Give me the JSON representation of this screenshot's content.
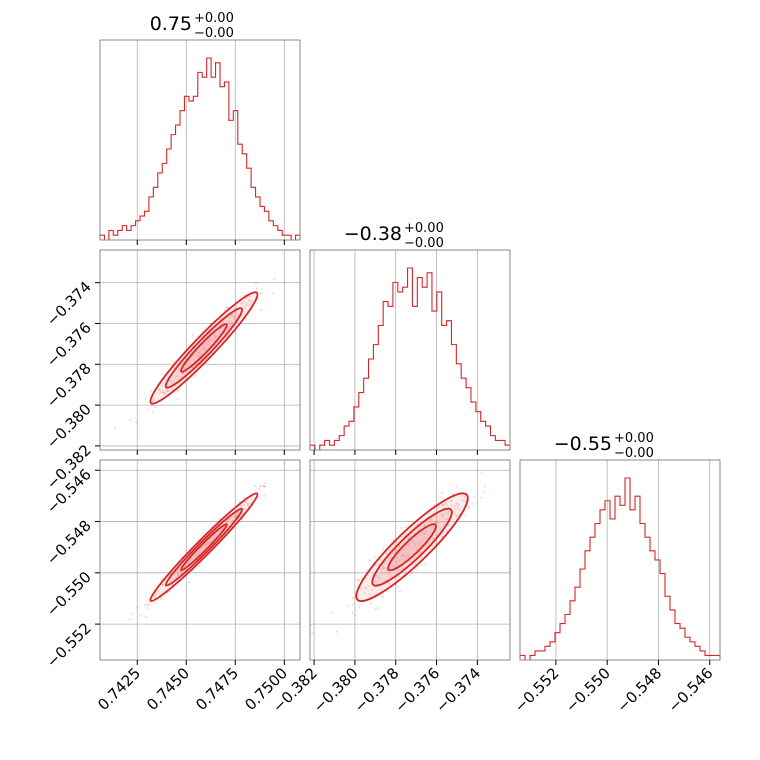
{
  "chart_data": {
    "type": "corner",
    "color": "#d62728",
    "fill_color": "#f2b3b3",
    "grid": true,
    "titles": [
      {
        "value": "0.75",
        "plus": "+0.00",
        "minus": "−0.00"
      },
      {
        "value": "−0.38",
        "plus": "+0.00",
        "minus": "−0.00"
      },
      {
        "value": "−0.55",
        "plus": "+0.00",
        "minus": "−0.00"
      }
    ],
    "parameters": [
      {
        "range": [
          0.7406,
          0.7508
        ],
        "ticks": [
          0.7425,
          0.745,
          0.7475,
          0.75
        ],
        "tick_labels": [
          "0.7425",
          "0.7450",
          "0.7475",
          "0.7500"
        ],
        "center": 0.7459,
        "sigma": 0.0013
      },
      {
        "range": [
          -0.3822,
          -0.3724
        ],
        "ticks": [
          -0.382,
          -0.38,
          -0.378,
          -0.376,
          -0.374
        ],
        "tick_labels": [
          "−0.382",
          "−0.380",
          "−0.378",
          "−0.376",
          "−0.374"
        ],
        "center": -0.3772,
        "sigma": 0.0013
      },
      {
        "range": [
          -0.5534,
          -0.5456
        ],
        "ticks": [
          -0.552,
          -0.55,
          -0.548,
          -0.546
        ],
        "tick_labels": [
          "−0.552",
          "−0.550",
          "−0.548",
          "−0.546"
        ],
        "center": -0.549,
        "sigma": 0.001
      }
    ],
    "histograms": [
      [
        1,
        0,
        2,
        1,
        2,
        3,
        2,
        3,
        4,
        5,
        6,
        9,
        11,
        14,
        16,
        19,
        22,
        24,
        27,
        30,
        29,
        30,
        35,
        34,
        38,
        34,
        37,
        32,
        33,
        25,
        27,
        20,
        18,
        15,
        11,
        9,
        7,
        6,
        4,
        3,
        2,
        1,
        1,
        0,
        1
      ],
      [
        1,
        0,
        1,
        2,
        1,
        2,
        3,
        5,
        6,
        9,
        12,
        15,
        19,
        22,
        26,
        31,
        30,
        35,
        33,
        34,
        38,
        30,
        36,
        34,
        37,
        29,
        33,
        26,
        27,
        22,
        18,
        15,
        13,
        10,
        8,
        6,
        5,
        3,
        2,
        2,
        1
      ],
      [
        1,
        0,
        1,
        2,
        2,
        3,
        4,
        6,
        8,
        10,
        13,
        16,
        20,
        24,
        27,
        30,
        33,
        35,
        31,
        36,
        34,
        40,
        33,
        36,
        30,
        27,
        24,
        22,
        19,
        14,
        11,
        8,
        7,
        5,
        4,
        3,
        2,
        1,
        1,
        1
      ]
    ],
    "correlations": {
      "1,0": 0.96,
      "2,0": 0.98,
      "2,1": 0.91
    }
  }
}
